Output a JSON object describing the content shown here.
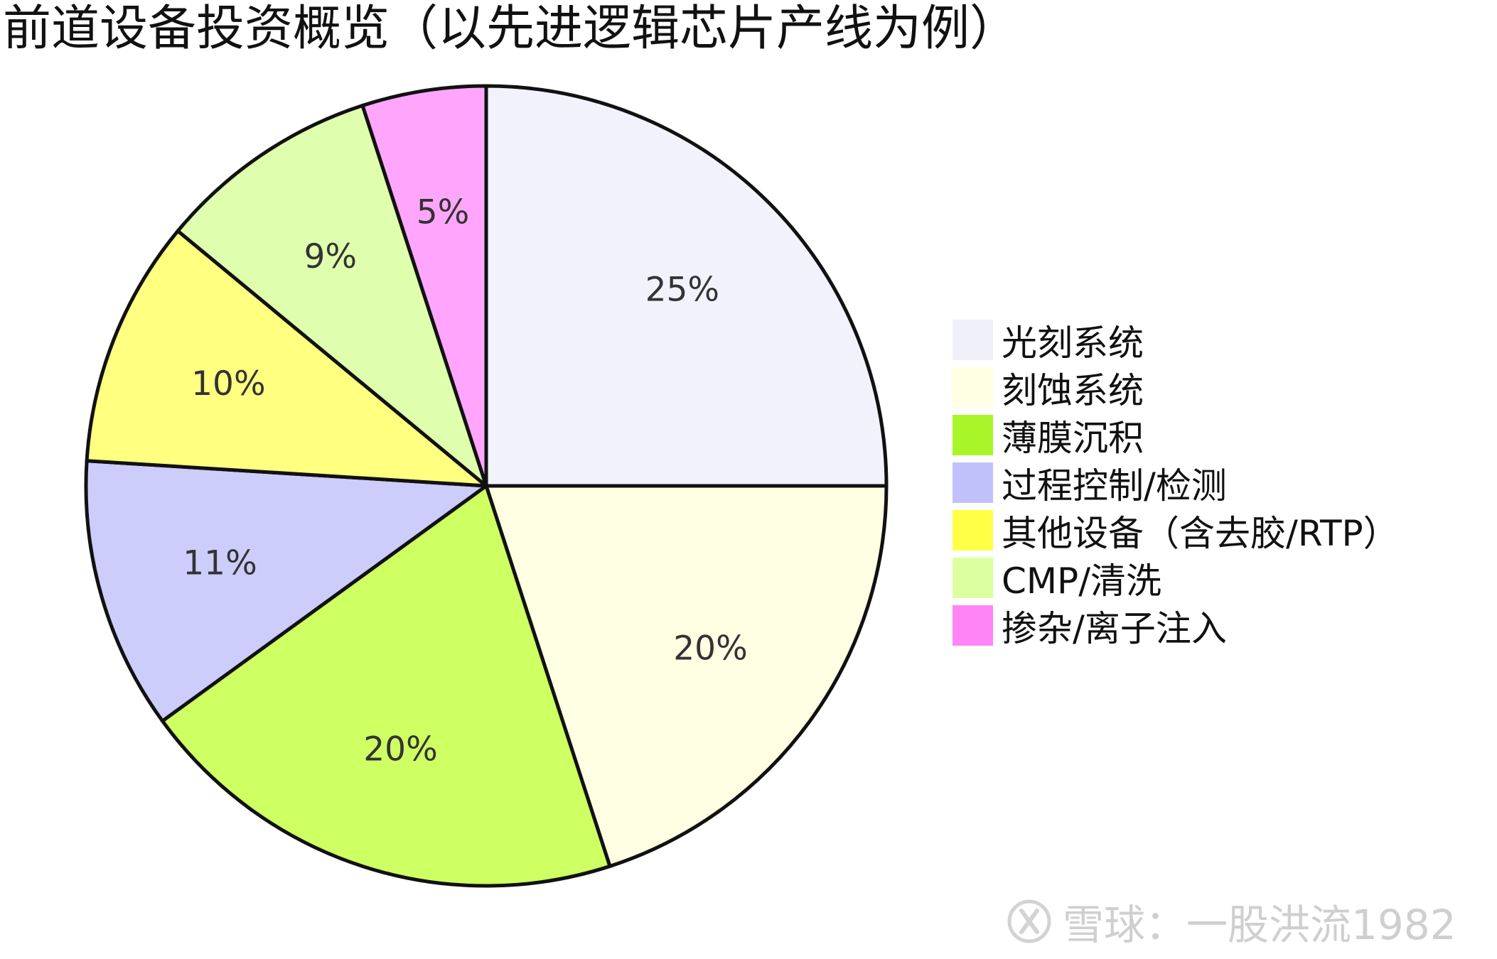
{
  "chart_data": {
    "type": "pie",
    "title": "前道设备投资概览（以先进逻辑芯片产线为例）",
    "categories": [
      "光刻系统",
      "刻蚀系统",
      "薄膜沉积",
      "过程控制/检测",
      "其他设备（含去胶/RTP）",
      "CMP/清洗",
      "掺杂/离子注入"
    ],
    "values": [
      25,
      20,
      20,
      11,
      10,
      9,
      5
    ],
    "slice_labels": [
      "25%",
      "20%",
      "20%",
      "11%",
      "10%",
      "9%",
      "5%"
    ],
    "colors": [
      "#f2f2fc",
      "#ffffe3",
      "#ceff63",
      "#cccdfb",
      "#ffff80",
      "#e0ffae",
      "#ffa6fc"
    ],
    "legend_colors": [
      "#f0f0fb",
      "#ffffe3",
      "#a8f52a",
      "#c0c1fb",
      "#ffff46",
      "#dcffa0",
      "#ff85f6"
    ],
    "legend_position": "right",
    "start_angle": "90deg",
    "direction": "clockwise"
  },
  "watermark": {
    "text": "雪球：一股洪流1982",
    "icon": "snowball-logo-icon"
  }
}
